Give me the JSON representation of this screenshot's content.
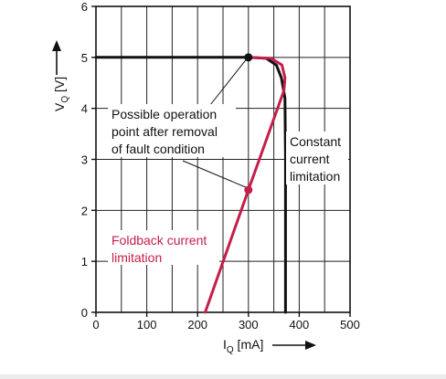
{
  "chart_data": {
    "type": "line",
    "xlabel": {
      "main": "I",
      "sub": "Q",
      "unit": " [mA]"
    },
    "ylabel": {
      "main": "V",
      "sub": "Q",
      "unit": " [V]"
    },
    "xlim": [
      0,
      500
    ],
    "ylim": [
      0,
      6
    ],
    "x_ticks": [
      "0",
      "100",
      "200",
      "300",
      "400",
      "500"
    ],
    "y_ticks": [
      "0",
      "1",
      "2",
      "3",
      "4",
      "5",
      "6"
    ],
    "grid": true,
    "series": [
      {
        "name": "Constant current limitation",
        "color": "#111111",
        "points": [
          [
            0,
            5.0
          ],
          [
            300,
            5.0
          ],
          [
            335,
            4.98
          ],
          [
            355,
            4.85
          ],
          [
            365,
            4.6
          ],
          [
            372,
            4.2
          ],
          [
            373,
            3.0
          ],
          [
            373,
            0
          ]
        ]
      },
      {
        "name": "Foldback current limitation",
        "color": "#c41e4a",
        "points": [
          [
            215,
            0
          ],
          [
            300,
            2.4
          ],
          [
            370,
            4.35
          ],
          [
            372,
            4.6
          ],
          [
            366,
            4.85
          ],
          [
            345,
            4.98
          ],
          [
            300,
            5.0
          ]
        ]
      }
    ],
    "markers": [
      {
        "x": 300,
        "y": 5.0,
        "color": "#111111"
      },
      {
        "x": 300,
        "y": 2.4,
        "color": "#c41e4a"
      }
    ],
    "annotations": [
      {
        "lines": [
          "Possible operation",
          "point after removal",
          "of fault condition"
        ],
        "color": "#111111"
      },
      {
        "lines": [
          "Constant",
          "current",
          "limitation"
        ],
        "color": "#111111"
      },
      {
        "lines": [
          "Foldback current",
          "limitation"
        ],
        "color": "#c41e4a"
      }
    ]
  }
}
